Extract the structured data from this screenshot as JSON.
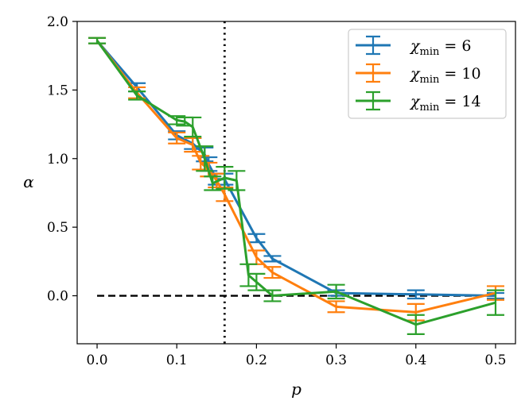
{
  "chart_data": {
    "type": "line",
    "xlabel": "p",
    "ylabel": "α",
    "xlim": [
      -0.025,
      0.525
    ],
    "ylim": [
      -0.35,
      2.0
    ],
    "xticks": [
      0.0,
      0.1,
      0.2,
      0.3,
      0.4,
      0.5
    ],
    "xtick_labels": [
      "0.0",
      "0.1",
      "0.2",
      "0.3",
      "0.4",
      "0.5"
    ],
    "yticks": [
      0.0,
      0.5,
      1.0,
      1.5,
      2.0
    ],
    "ytick_labels": [
      "0.0",
      "0.5",
      "1.0",
      "1.5",
      "2.0"
    ],
    "legend_position": "top-right",
    "reference_lines": [
      {
        "orientation": "vertical",
        "value": 0.16,
        "style": "dotted",
        "color": "#000000"
      },
      {
        "orientation": "horizontal",
        "value": 0.0,
        "x_range": [
          0.0,
          0.5
        ],
        "style": "dashed",
        "color": "#000000"
      }
    ],
    "series": [
      {
        "name": "χ_min = 6",
        "legend_var": "χ",
        "legend_sub": "min",
        "legend_rest": " = 6",
        "color": "#1f77b4",
        "x": [
          0.0,
          0.05,
          0.1,
          0.12,
          0.135,
          0.14,
          0.15,
          0.16,
          0.2,
          0.22,
          0.3,
          0.4,
          0.5
        ],
        "y": [
          1.86,
          1.52,
          1.17,
          1.11,
          1.03,
          0.96,
          0.85,
          0.85,
          0.42,
          0.27,
          0.02,
          0.01,
          0.0
        ],
        "err": [
          0.02,
          0.03,
          0.03,
          0.04,
          0.05,
          0.05,
          0.04,
          0.04,
          0.03,
          0.02,
          0.02,
          0.03,
          0.02
        ]
      },
      {
        "name": "χ_min = 10",
        "legend_var": "χ",
        "legend_sub": "min",
        "legend_rest": " = 10",
        "color": "#ff7f0e",
        "x": [
          0.0,
          0.05,
          0.1,
          0.12,
          0.13,
          0.14,
          0.15,
          0.16,
          0.2,
          0.22,
          0.3,
          0.4,
          0.5
        ],
        "y": [
          1.86,
          1.48,
          1.15,
          1.1,
          0.97,
          0.92,
          0.84,
          0.74,
          0.28,
          0.17,
          -0.08,
          -0.12,
          0.02
        ],
        "err": [
          0.02,
          0.04,
          0.04,
          0.05,
          0.05,
          0.05,
          0.05,
          0.05,
          0.05,
          0.04,
          0.04,
          0.06,
          0.05
        ]
      },
      {
        "name": "χ_min = 14",
        "legend_var": "χ",
        "legend_sub": "min",
        "legend_rest": " = 14",
        "color": "#2ca02c",
        "x": [
          0.0,
          0.05,
          0.1,
          0.11,
          0.12,
          0.135,
          0.145,
          0.16,
          0.175,
          0.19,
          0.2,
          0.22,
          0.3,
          0.4,
          0.5
        ],
        "y": [
          1.86,
          1.46,
          1.28,
          1.27,
          1.23,
          1.0,
          0.82,
          0.86,
          0.84,
          0.15,
          0.1,
          0.0,
          0.03,
          -0.21,
          -0.05
        ],
        "err": [
          0.02,
          0.03,
          0.03,
          0.03,
          0.07,
          0.09,
          0.05,
          0.08,
          0.07,
          0.08,
          0.06,
          0.04,
          0.05,
          0.07,
          0.09
        ]
      }
    ]
  }
}
